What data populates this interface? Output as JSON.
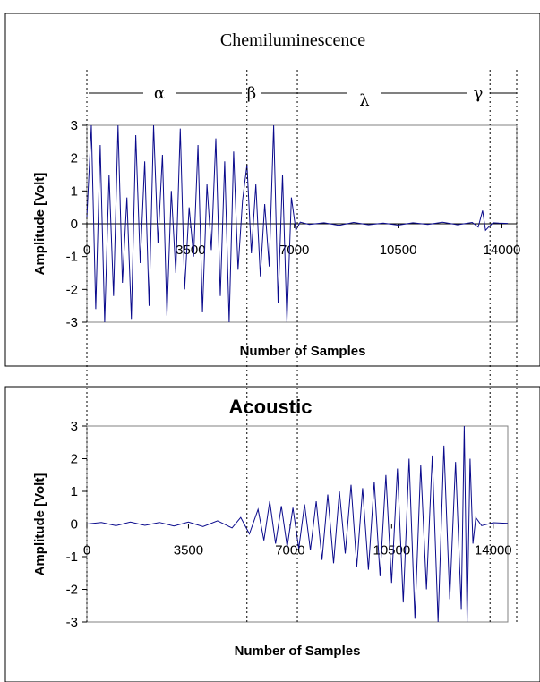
{
  "chart_data": [
    {
      "type": "line",
      "title": "Chemiluminescence",
      "xlabel": "Number of Samples",
      "ylabel": "Amplitude [Volt]",
      "xlim": [
        0,
        14500
      ],
      "ylim": [
        -3,
        3
      ],
      "xticks": [
        "0",
        "3500",
        "7000",
        "10500",
        "14000"
      ],
      "xtick_values": [
        0,
        3500,
        7000,
        10500,
        14000
      ],
      "yticks": [
        "3",
        "2",
        "1",
        "0",
        "-1",
        "-2",
        "-3"
      ],
      "ytick_values": [
        3,
        2,
        1,
        0,
        -1,
        -2,
        -3
      ],
      "grid": false,
      "color": "#0a0a8c",
      "regions": [
        {
          "label": "α",
          "start": 0,
          "end": 5400
        },
        {
          "label": "β",
          "start": 5400,
          "end": 7100
        },
        {
          "label": "λ",
          "start": 7100,
          "end": 13600
        },
        {
          "label": "γ",
          "start": 13600,
          "end": 16200
        }
      ],
      "series": [
        {
          "x": [
            0,
            150,
            300,
            450,
            600,
            750,
            900,
            1050,
            1200,
            1350,
            1500,
            1650,
            1800,
            1950,
            2100,
            2250,
            2400,
            2550,
            2700,
            2850,
            3000,
            3150,
            3300,
            3450,
            3600,
            3750,
            3900,
            4050,
            4200,
            4350,
            4500,
            4650,
            4800,
            4950,
            5100,
            5250,
            5400,
            5550,
            5700,
            5850,
            6000,
            6150,
            6300,
            6450,
            6600,
            6750,
            6900,
            7050,
            7200,
            7500,
            8000,
            8500,
            9000,
            9500,
            10000,
            10500,
            11000,
            11500,
            12000,
            12500,
            13000,
            13200,
            13350,
            13450,
            13550,
            13700,
            13900,
            14200
          ],
          "y": [
            0.2,
            3.0,
            -2.6,
            2.4,
            -3.0,
            1.5,
            -2.2,
            3.0,
            -1.8,
            0.8,
            -2.9,
            2.7,
            -1.2,
            1.9,
            -2.5,
            3.0,
            -0.6,
            2.1,
            -2.8,
            1.0,
            -1.5,
            2.9,
            -2.0,
            0.5,
            -1.0,
            2.4,
            -2.7,
            1.2,
            -0.8,
            2.6,
            -2.2,
            1.9,
            -3.0,
            2.2,
            -1.4,
            0.7,
            1.8,
            -0.9,
            1.2,
            -1.6,
            0.6,
            -1.3,
            3.0,
            -2.4,
            1.5,
            -3.0,
            0.8,
            -0.2,
            0.05,
            -0.02,
            0.03,
            -0.05,
            0.04,
            -0.03,
            0.02,
            -0.04,
            0.03,
            -0.02,
            0.05,
            -0.03,
            0.04,
            -0.1,
            0.4,
            -0.2,
            -0.1,
            0.03,
            0.02,
            0.01
          ]
        }
      ]
    },
    {
      "type": "line",
      "title": "Acoustic",
      "xlabel": "Number of Samples",
      "ylabel": "Amplitude [Volt]",
      "xlim": [
        0,
        14500
      ],
      "ylim": [
        -3,
        3
      ],
      "xticks": [
        "0",
        "3500",
        "7000",
        "10500",
        "14000"
      ],
      "xtick_values": [
        0,
        3500,
        7000,
        10500,
        14000
      ],
      "yticks": [
        "3",
        "2",
        "1",
        "0",
        "-1",
        "-2",
        "-3"
      ],
      "ytick_values": [
        3,
        2,
        1,
        0,
        -1,
        -2,
        -3
      ],
      "grid": false,
      "color": "#0a0a8c",
      "series": [
        {
          "x": [
            0,
            500,
            1000,
            1500,
            2000,
            2500,
            3000,
            3500,
            4000,
            4500,
            5000,
            5300,
            5600,
            5900,
            6100,
            6300,
            6500,
            6700,
            6900,
            7100,
            7300,
            7500,
            7700,
            7900,
            8100,
            8300,
            8500,
            8700,
            8900,
            9100,
            9300,
            9500,
            9700,
            9900,
            10100,
            10300,
            10500,
            10700,
            10900,
            11100,
            11300,
            11500,
            11700,
            11900,
            12100,
            12300,
            12500,
            12700,
            12900,
            13000,
            13100,
            13200,
            13300,
            13400,
            13600,
            14000,
            14500
          ],
          "y": [
            0.0,
            0.05,
            -0.05,
            0.06,
            -0.04,
            0.05,
            -0.06,
            0.06,
            -0.08,
            0.1,
            -0.12,
            0.2,
            -0.3,
            0.45,
            -0.5,
            0.7,
            -0.6,
            0.55,
            -0.7,
            0.5,
            -0.75,
            0.6,
            -0.8,
            0.7,
            -1.1,
            0.9,
            -1.2,
            1.0,
            -0.9,
            1.2,
            -1.3,
            1.1,
            -1.4,
            1.3,
            -1.6,
            1.5,
            -1.8,
            1.7,
            -2.4,
            2.0,
            -2.9,
            1.8,
            -2.0,
            2.1,
            -3.0,
            2.4,
            -2.3,
            1.9,
            -2.6,
            3.0,
            -3.0,
            2.0,
            -0.6,
            0.2,
            -0.05,
            0.04,
            0.02
          ]
        }
      ]
    }
  ]
}
